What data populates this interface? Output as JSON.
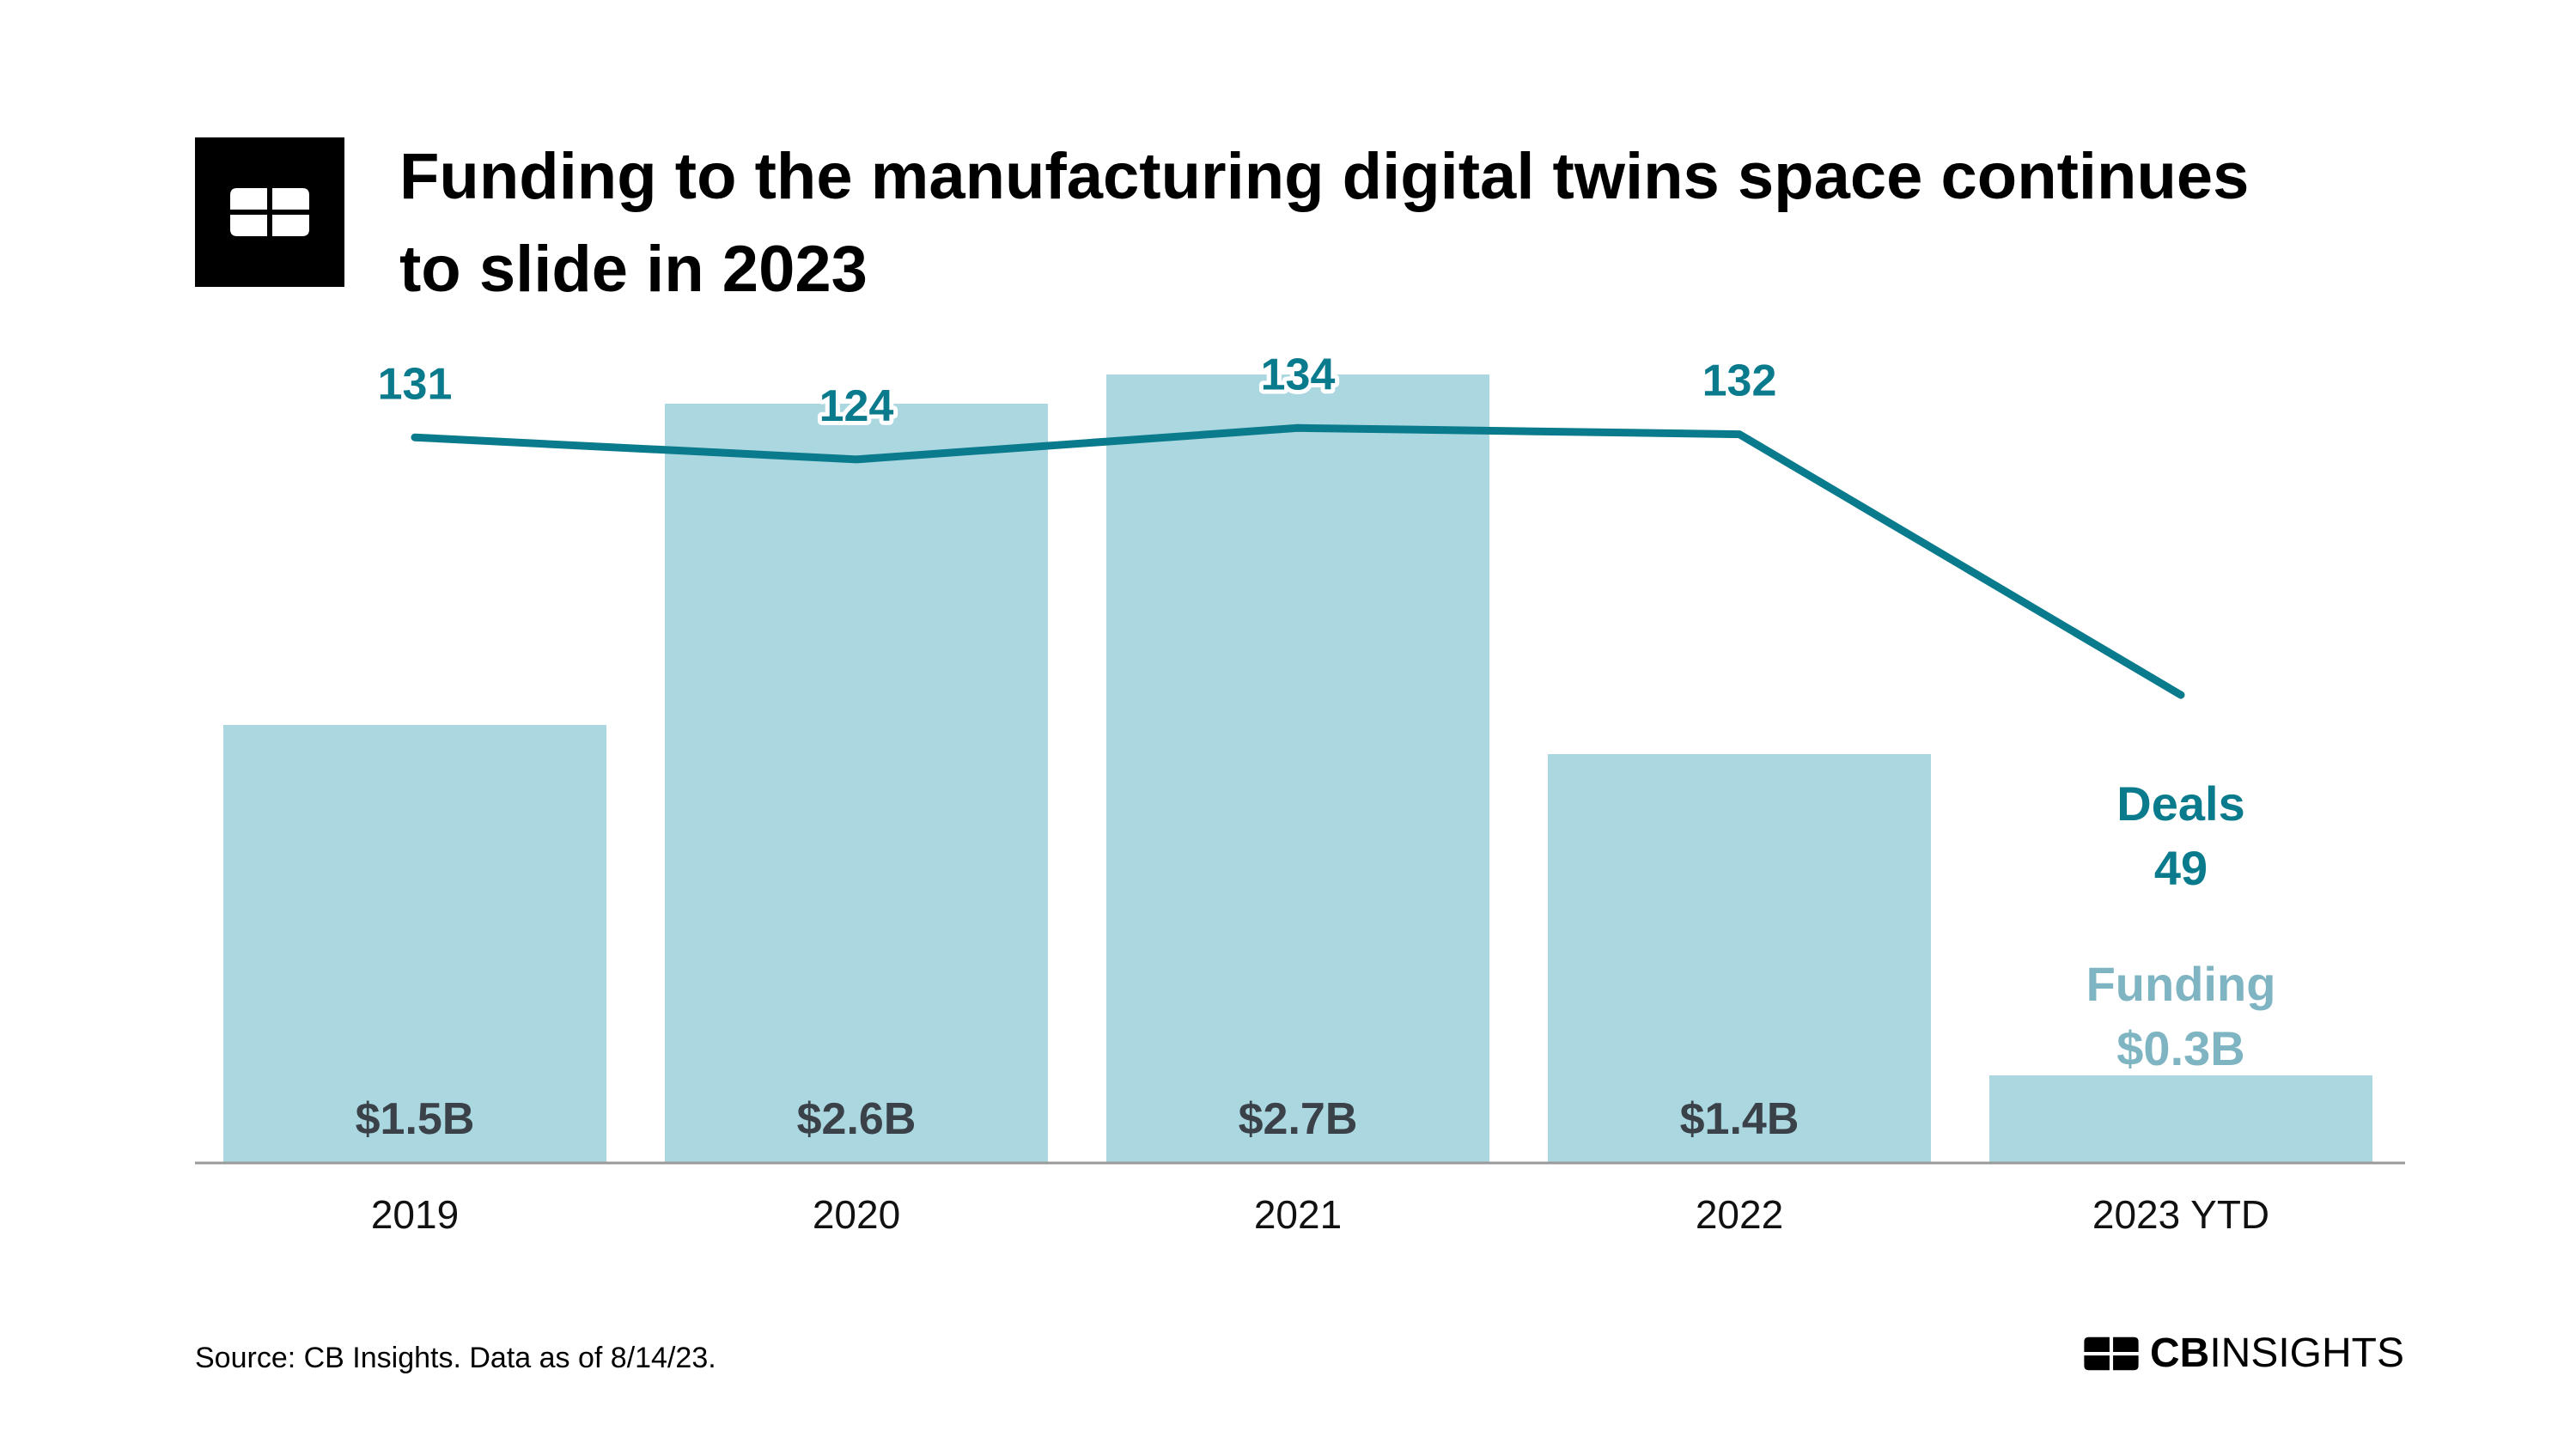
{
  "title": "Funding to the manufacturing digital twins space continues to slide in 2023",
  "source": "Source: CB Insights. Data as of 8/14/23.",
  "brand": {
    "bold": "CB",
    "light": "INSIGHTS"
  },
  "logo_icon": "cb-logo-icon",
  "colors": {
    "bar": "#aad7e0",
    "line": "#0a7b8c",
    "bar_label": "#3a4148",
    "funding_label": "#7fb4c2",
    "axis": "#9a9a9a"
  },
  "chart_data": {
    "type": "bar",
    "categories": [
      "2019",
      "2020",
      "2021",
      "2022",
      "2023 YTD"
    ],
    "series": [
      {
        "name": "Funding",
        "type": "bar",
        "values": [
          1.5,
          2.6,
          2.7,
          1.4,
          0.3
        ],
        "labels": [
          "$1.5B",
          "$2.6B",
          "$2.7B",
          "$1.4B",
          "$0.3B"
        ]
      },
      {
        "name": "Deals",
        "type": "line",
        "values": [
          131,
          124,
          134,
          132,
          49
        ],
        "labels": [
          "131",
          "124",
          "134",
          "132",
          "49"
        ]
      }
    ],
    "annotations": {
      "deals_label": "Deals",
      "funding_label": "Funding"
    },
    "funding_ylim": [
      0,
      3.1
    ],
    "deals_ylim": [
      -100,
      139
    ],
    "grid": false,
    "legend": "none"
  }
}
